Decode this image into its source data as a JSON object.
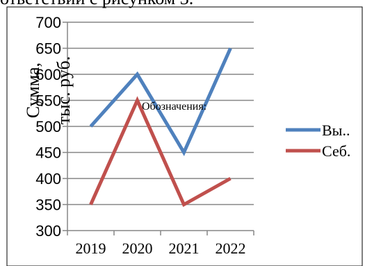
{
  "page": {
    "top_text": "ответствии с рисунком 3."
  },
  "chart_data": {
    "type": "line",
    "categories": [
      "2019",
      "2020",
      "2021",
      "2022"
    ],
    "series": [
      {
        "name": "Вы..",
        "values": [
          500,
          600,
          450,
          650
        ],
        "color": "#4F81BD"
      },
      {
        "name": "Себ.",
        "values": [
          350,
          550,
          350,
          400
        ],
        "color": "#C0504D"
      }
    ],
    "ylabel_lines": [
      "Сумма,",
      "тыс. руб."
    ],
    "annotation": "Обозначения:",
    "ylim": [
      300,
      700
    ],
    "yticks": [
      300,
      350,
      400,
      450,
      500,
      550,
      600,
      650,
      700
    ],
    "grid": true,
    "legend_position": "right"
  }
}
